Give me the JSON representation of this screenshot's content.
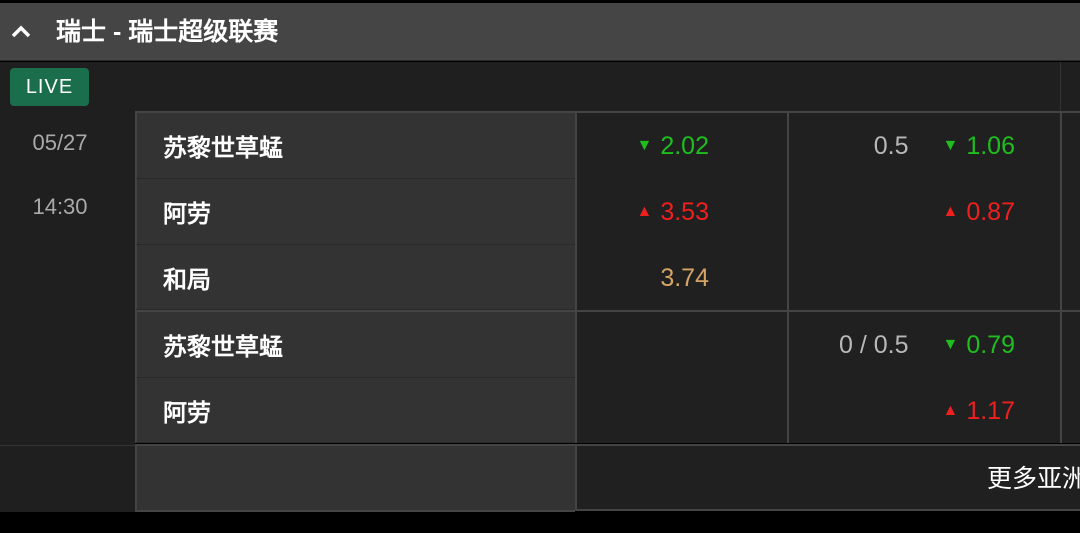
{
  "league": {
    "title": "瑞士 - 瑞士超级联赛",
    "collapse_icon": "chevron-up-icon"
  },
  "live_badge": "LIVE",
  "match": {
    "date": "05/27",
    "time": "14:30"
  },
  "colors": {
    "up": "#f01f1f",
    "down": "#1fbe1f",
    "draw": "#d4a465",
    "live": "#1b6e4c"
  },
  "market1": {
    "rows": [
      {
        "team": "苏黎世草蜢",
        "win_odds": "2.02",
        "win_trend": "down",
        "handicap": "0.5",
        "hc_odds": "1.06",
        "hc_trend": "down"
      },
      {
        "team": "阿劳",
        "win_odds": "3.53",
        "win_trend": "up",
        "handicap": "",
        "hc_odds": "0.87",
        "hc_trend": "up"
      },
      {
        "team": "和局",
        "win_odds": "3.74",
        "win_trend": "none"
      }
    ]
  },
  "market2": {
    "rows": [
      {
        "team": "苏黎世草蜢",
        "handicap": "0 / 0.5",
        "hc_odds": "0.79",
        "hc_trend": "down"
      },
      {
        "team": "阿劳",
        "hc_odds": "1.17",
        "hc_trend": "up"
      }
    ]
  },
  "more_link": "更多亚洲"
}
